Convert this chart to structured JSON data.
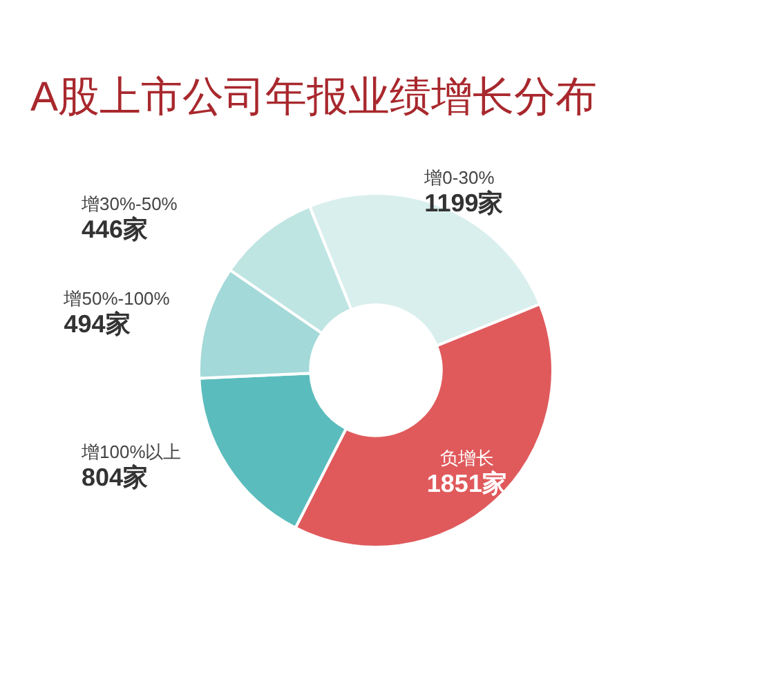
{
  "chart_data": {
    "type": "donut",
    "title": "A股上市公司年报业绩增长分布",
    "categories": [
      "增0-30%",
      "负增长",
      "增100%以上",
      "增50%-100%",
      "增30%-50%"
    ],
    "values": [
      1199,
      1851,
      804,
      494,
      446
    ],
    "colors": [
      "#d9efed",
      "#e05a5c",
      "#5bbcbd",
      "#a3d9d8",
      "#bfe5e3"
    ],
    "value_labels": [
      "1199家",
      "1851家",
      "804家",
      "494家",
      "446家"
    ]
  }
}
